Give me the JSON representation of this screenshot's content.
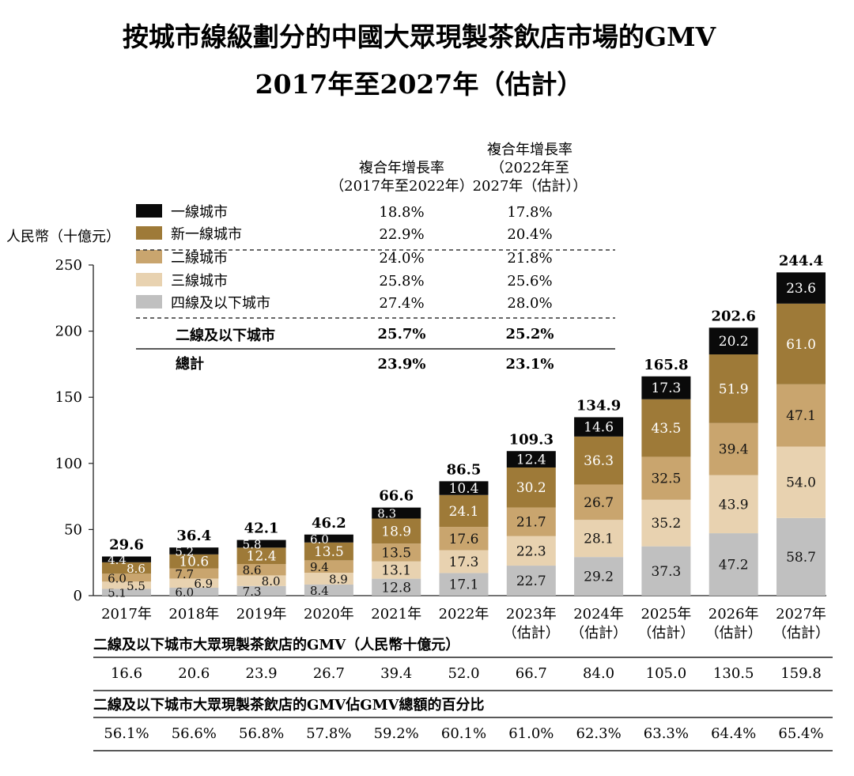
{
  "title_line1": "按城市線級劃分的中國大眾現製茶飲店市場的GMV",
  "title_line2": "2017年至2027年（估計）",
  "chart_data": {
    "type": "bar",
    "stacked": true,
    "title": "按城市線級劃分的中國大眾現製茶飲店市場的GMV 2017年至2027年（估計）",
    "ylabel": "人民幣（十億元）",
    "ylim": [
      0,
      250
    ],
    "yticks": [
      "0",
      "50",
      "100",
      "150",
      "200",
      "250"
    ],
    "categories": [
      {
        "year": "2017年",
        "note": ""
      },
      {
        "year": "2018年",
        "note": ""
      },
      {
        "year": "2019年",
        "note": ""
      },
      {
        "year": "2020年",
        "note": ""
      },
      {
        "year": "2021年",
        "note": ""
      },
      {
        "year": "2022年",
        "note": ""
      },
      {
        "year": "2023年",
        "note": "（估計）"
      },
      {
        "year": "2024年",
        "note": "（估計）"
      },
      {
        "year": "2025年",
        "note": "（估計）"
      },
      {
        "year": "2026年",
        "note": "（估計）"
      },
      {
        "year": "2027年",
        "note": "（估計）"
      }
    ],
    "series": [
      {
        "name": "四線及以下城市",
        "color": "#c0c0c0",
        "label_color": "#111111",
        "values": [
          5.1,
          6.0,
          7.3,
          8.4,
          12.8,
          17.1,
          22.7,
          29.2,
          37.3,
          47.2,
          58.7
        ]
      },
      {
        "name": "三線城市",
        "color": "#e8d2b0",
        "label_color": "#111111",
        "values": [
          5.5,
          6.9,
          8.0,
          8.9,
          13.1,
          17.3,
          22.3,
          28.1,
          35.2,
          43.9,
          54.0
        ]
      },
      {
        "name": "二線城市",
        "color": "#c9a56e",
        "label_color": "#111111",
        "values": [
          6.0,
          7.7,
          8.6,
          9.4,
          13.5,
          17.6,
          21.7,
          26.7,
          32.5,
          39.4,
          47.1
        ]
      },
      {
        "name": "新一線城市",
        "color": "#9e7a38",
        "label_color": "#ffffff",
        "values": [
          8.6,
          10.6,
          12.4,
          13.5,
          18.9,
          24.1,
          30.2,
          36.3,
          43.5,
          51.9,
          61.0
        ]
      },
      {
        "name": "一線城市",
        "color": "#0a0a0a",
        "label_color": "#ffffff",
        "values": [
          4.4,
          5.2,
          5.8,
          6.0,
          8.3,
          10.4,
          12.4,
          14.6,
          17.3,
          20.2,
          23.6
        ]
      }
    ],
    "totals": [
      "29.6",
      "36.4",
      "42.1",
      "46.2",
      "66.6",
      "86.5",
      "109.3",
      "134.9",
      "165.8",
      "202.6",
      "244.4"
    ],
    "legend": {
      "placement": "top-left",
      "cagr_header_1": "複合年增長率\n（2017年至2022年）",
      "cagr_header_2": "複合年增長率\n（2022年至\n2027年（估計））",
      "rows": [
        {
          "name": "一線城市",
          "color": "#0a0a0a",
          "cagr1": "18.8%",
          "cagr2": "17.8%"
        },
        {
          "name": "新一線城市",
          "color": "#9e7a38",
          "cagr1": "22.9%",
          "cagr2": "20.4%"
        },
        {
          "name": "二線城市",
          "color": "#c9a56e",
          "cagr1": "24.0%",
          "cagr2": "21.8%"
        },
        {
          "name": "三線城市",
          "color": "#e8d2b0",
          "cagr1": "25.8%",
          "cagr2": "25.6%"
        },
        {
          "name": "四線及以下城市",
          "color": "#c0c0c0",
          "cagr1": "27.4%",
          "cagr2": "28.0%"
        }
      ],
      "subtotal": {
        "name": "二線及以下城市",
        "cagr1": "25.7%",
        "cagr2": "25.2%"
      },
      "total": {
        "name": "總計",
        "cagr1": "23.9%",
        "cagr2": "23.1%"
      }
    },
    "tables": [
      {
        "title": "二線及以下城市大眾現製茶飲店的GMV（人民幣十億元）",
        "values": [
          "16.6",
          "20.6",
          "23.9",
          "26.7",
          "39.4",
          "52.0",
          "66.7",
          "84.0",
          "105.0",
          "130.5",
          "159.8"
        ]
      },
      {
        "title": "二線及以下城市大眾現製茶飲店的GMV佔GMV總額的百分比",
        "values": [
          "56.1%",
          "56.6%",
          "56.8%",
          "57.8%",
          "59.2%",
          "60.1%",
          "61.0%",
          "62.3%",
          "63.3%",
          "64.4%",
          "65.4%"
        ]
      }
    ]
  }
}
